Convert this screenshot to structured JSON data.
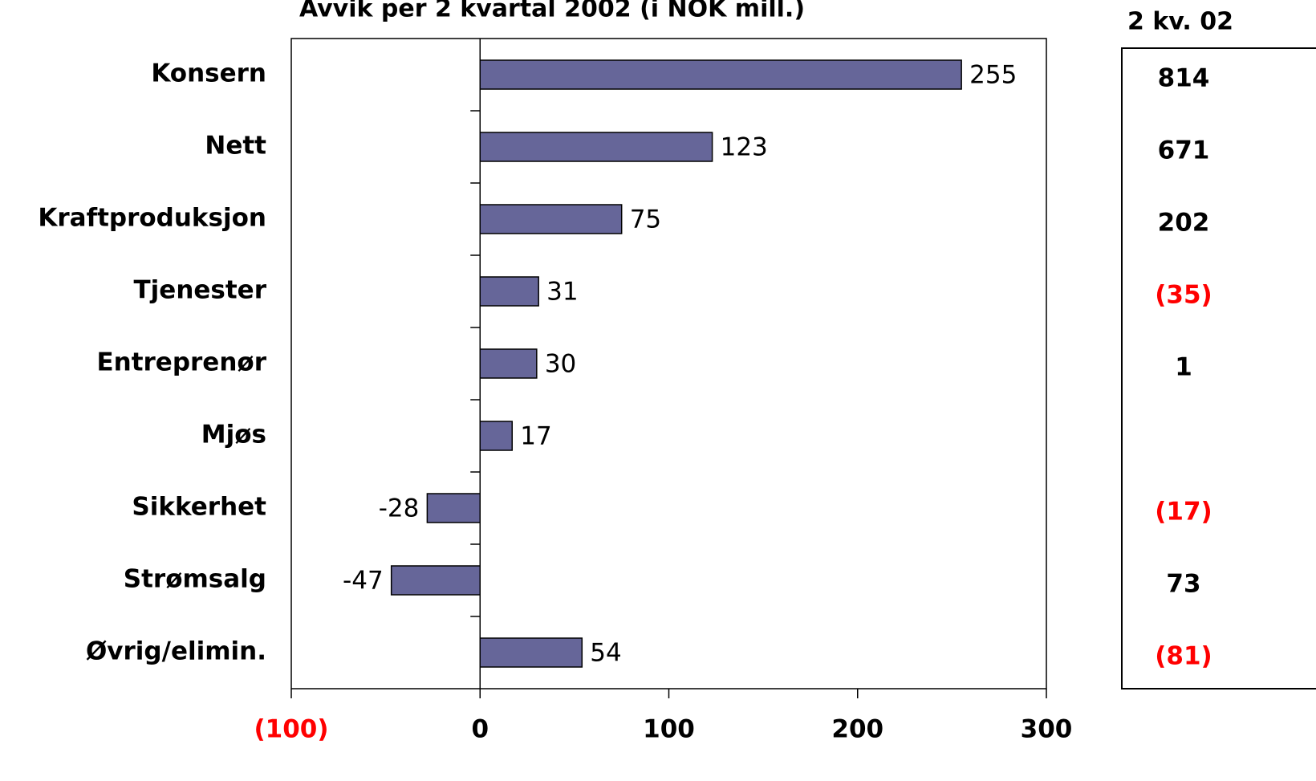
{
  "chart_data": {
    "type": "hbar",
    "title": "Avvik per 2 kvartal 2002 (i NOK mill.)",
    "categories": [
      "Konsern",
      "Nett",
      "Kraftproduksjon",
      "Tjenester",
      "Entreprenør",
      "Mjøs",
      "Sikkerhet",
      "Strømsalg",
      "Øvrig/elimin."
    ],
    "values": [
      255,
      123,
      75,
      31,
      30,
      17,
      -28,
      -47,
      54
    ],
    "color": "#666699",
    "negative_label_color": "#ff0000",
    "xlim": [
      -100,
      300
    ],
    "xticks": [
      {
        "value": -100,
        "label": "(100)"
      },
      0,
      100,
      200,
      300
    ],
    "side_table": {
      "header": "2 kv. 02",
      "values": [
        "814",
        "671",
        "202",
        "(35)",
        "1",
        null,
        "(17)",
        "73",
        "(81)"
      ]
    }
  }
}
